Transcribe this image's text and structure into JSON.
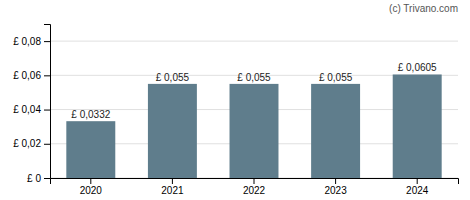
{
  "chart_data": {
    "type": "bar",
    "categories": [
      "2020",
      "2021",
      "2022",
      "2023",
      "2024"
    ],
    "values": [
      0.0332,
      0.055,
      0.055,
      0.055,
      0.0605
    ],
    "value_labels": [
      "£ 0,0332",
      "£ 0,055",
      "£ 0,055",
      "£ 0,055",
      "£ 0,0605"
    ],
    "data_labels": true,
    "color": "#5f7d8c",
    "ylim": [
      0,
      0.09
    ],
    "yticks": [
      {
        "value": 0,
        "label": "£ 0"
      },
      {
        "value": 0.02,
        "label": "£ 0,02"
      },
      {
        "value": 0.04,
        "label": "£ 0,04"
      },
      {
        "value": 0.06,
        "label": "£ 0,06"
      },
      {
        "value": 0.08,
        "label": "£ 0,08"
      }
    ],
    "grid": true,
    "annotations": [
      "(c) Trivano.com"
    ]
  }
}
